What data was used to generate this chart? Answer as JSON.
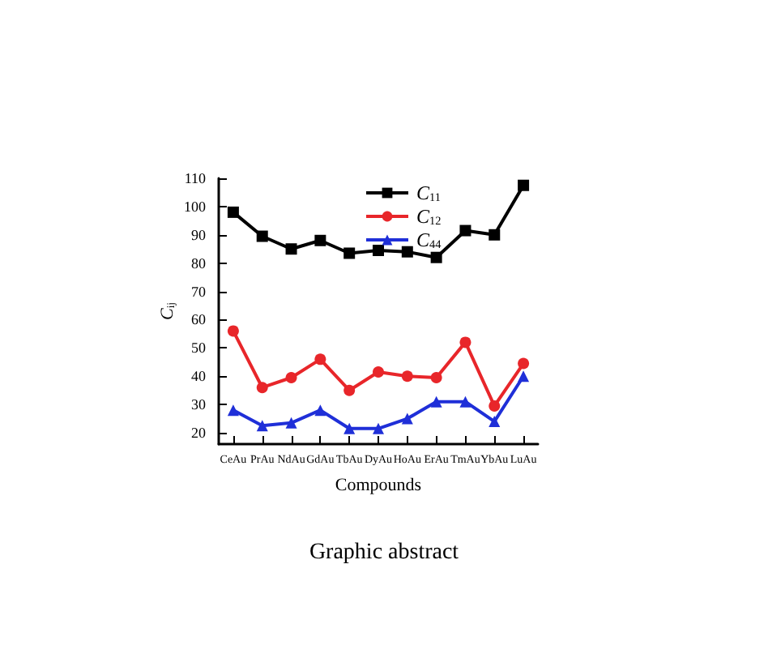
{
  "chart_data": {
    "type": "line",
    "xlabel": "Compounds",
    "ylabel": "C$_{ij}$",
    "annotations": [
      "Graphic abstract"
    ],
    "categories": [
      "CeAu",
      "PrAu",
      "NdAu",
      "GdAu",
      "TbAu",
      "DyAu",
      "HoAu",
      "ErAu",
      "TmAu",
      "YbAu",
      "LuAu"
    ],
    "series": [
      {
        "name": "C$_{11}$",
        "color": "#000000",
        "marker": "square",
        "values": [
          98,
          89.5,
          85,
          88,
          83.5,
          84.5,
          84,
          82,
          91.5,
          90,
          107.5
        ]
      },
      {
        "name": "C$_{12}$",
        "color": "#e8262a",
        "marker": "circle",
        "values": [
          56,
          36,
          39.5,
          46,
          35,
          41.5,
          40,
          39.5,
          52,
          29.5,
          44.5
        ]
      },
      {
        "name": "C$_{44}$",
        "color": "#1f2fd8",
        "marker": "triangle",
        "values": [
          28,
          22.5,
          23.5,
          28,
          21.5,
          21.5,
          25,
          31,
          31,
          24,
          40
        ]
      }
    ],
    "ylim": [
      16,
      110
    ],
    "yticks": [
      20,
      30,
      40,
      50,
      60,
      70,
      80,
      90,
      100,
      110
    ],
    "grid": false,
    "legend": "top",
    "line_style": "solid"
  }
}
